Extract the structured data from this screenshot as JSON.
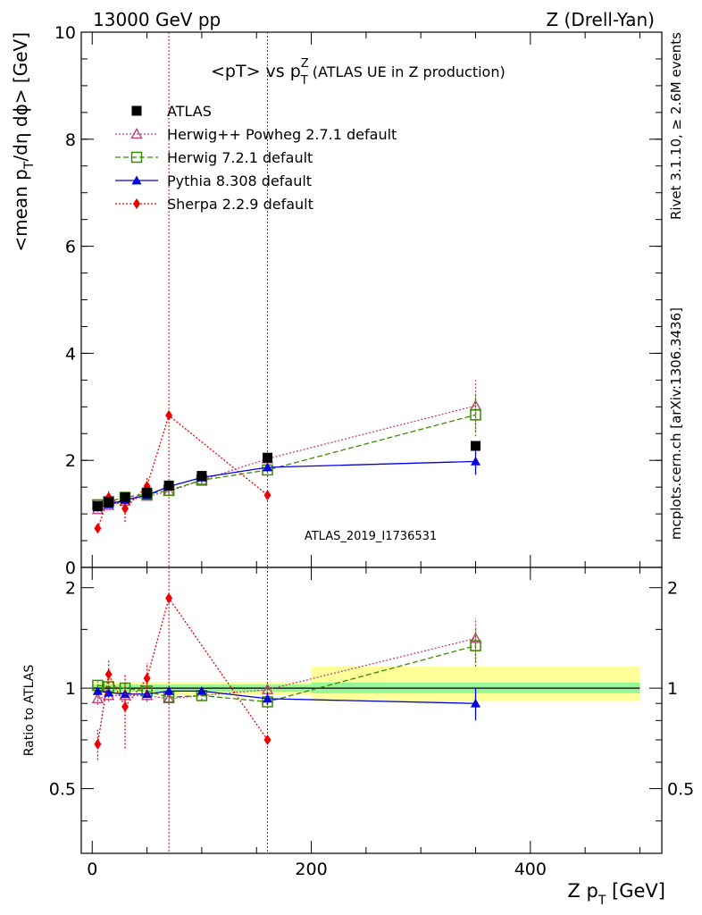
{
  "header": {
    "left": "13000 GeV pp",
    "right": "Z (Drell-Yan)"
  },
  "side_labels": {
    "rivet": "Rivet 3.1.10, ≥ 2.6M events",
    "mcplots": "mcplots.cern.ch [arXiv:1306.3436]"
  },
  "watermark": "ATLAS_2019_I1736531",
  "colors": {
    "atlas": "#000000",
    "herwigpp": "#c0407a",
    "herwig7": "#3a8a00",
    "pythia": "#0000dd",
    "sherpa": "#ee0000",
    "band_inner": "#98f598",
    "band_outer": "#ffff99",
    "vline": "#ee0000"
  },
  "chart_data": [
    {
      "type": "line",
      "title_parts": {
        "pre": "<pT> vs p",
        "sup": "Z",
        "sub": "T",
        "post": " (ATLAS UE in Z production)"
      },
      "ylabel_parts": {
        "pre": "<mean p",
        "sub": "T",
        "post": "/dη dϕ> [GeV]"
      },
      "xlim": [
        -10,
        520
      ],
      "ylim": [
        0,
        10
      ],
      "yticks": [
        0,
        2,
        4,
        6,
        8,
        10
      ],
      "grid": false,
      "legend_position": "top-left",
      "vlines_x": [
        70,
        160
      ],
      "series": [
        {
          "name": "ATLAS",
          "key": "atlas",
          "marker": "square-filled",
          "line": "none",
          "x": [
            5,
            15,
            30,
            50,
            70,
            100,
            160,
            350
          ],
          "y": [
            1.15,
            1.22,
            1.31,
            1.4,
            1.53,
            1.71,
            2.05,
            2.27
          ],
          "err": [
            0.02,
            0.02,
            0.02,
            0.02,
            0.03,
            0.03,
            0.04,
            0.05
          ]
        },
        {
          "name": "Herwig++ Powheg 2.7.1 default",
          "key": "herwigpp",
          "marker": "triangle-open",
          "line": "dotted",
          "x": [
            5,
            15,
            30,
            50,
            70,
            100,
            160,
            350
          ],
          "y": [
            1.08,
            1.16,
            1.24,
            1.33,
            1.42,
            1.63,
            2.03,
            3.02
          ],
          "err": [
            0.05,
            0.05,
            0.05,
            0.05,
            0.06,
            0.06,
            0.08,
            0.48
          ]
        },
        {
          "name": "Herwig 7.2.1 default",
          "key": "herwig7",
          "marker": "square-open",
          "line": "dashed",
          "x": [
            5,
            15,
            30,
            50,
            70,
            100,
            160,
            350
          ],
          "y": [
            1.17,
            1.23,
            1.31,
            1.37,
            1.44,
            1.63,
            1.82,
            2.85
          ],
          "err": [
            0.04,
            0.04,
            0.04,
            0.04,
            0.05,
            0.05,
            0.06,
            0.4
          ]
        },
        {
          "name": "Pythia 8.308 default",
          "key": "pythia",
          "marker": "triangle-filled",
          "line": "solid",
          "x": [
            5,
            15,
            30,
            50,
            70,
            100,
            160,
            350
          ],
          "y": [
            1.12,
            1.18,
            1.26,
            1.35,
            1.51,
            1.68,
            1.87,
            1.98
          ],
          "err": [
            0.03,
            0.03,
            0.03,
            0.04,
            0.04,
            0.05,
            0.08,
            0.25
          ]
        },
        {
          "name": "Sherpa 2.2.9 default",
          "key": "sherpa",
          "marker": "diamond-filled",
          "line": "dotted",
          "x": [
            5,
            15,
            30,
            50,
            70,
            160
          ],
          "y": [
            0.73,
            1.31,
            1.1,
            1.52,
            2.84,
            1.35
          ],
          "err": [
            0.08,
            0.12,
            0.25,
            0.15,
            0.0,
            0.0
          ]
        }
      ]
    },
    {
      "type": "line",
      "ylabel": "Ratio to ATLAS",
      "xlabel_parts": {
        "pre": "Z p",
        "sub": "T",
        "post": " [GeV]"
      },
      "xlim": [
        -10,
        520
      ],
      "ylim": [
        0.32,
        2.3
      ],
      "yticks": [
        0.5,
        1,
        2
      ],
      "ytick_labels": [
        "0.5",
        "1",
        "2"
      ],
      "xticks": [
        0,
        200,
        400
      ],
      "grid": false,
      "reference_line": 1,
      "bands": [
        {
          "x0": 0,
          "x1": 200,
          "inner": [
            0.975,
            1.025
          ],
          "outer": [
            0.955,
            1.045
          ]
        },
        {
          "x0": 200,
          "x1": 500,
          "inner": [
            0.965,
            1.04
          ],
          "outer": [
            0.915,
            1.16
          ]
        }
      ],
      "vlines_x": [
        70,
        160
      ],
      "series": [
        {
          "name": "Herwig++ Powheg 2.7.1 default",
          "key": "herwigpp",
          "marker": "triangle-open",
          "line": "dotted",
          "x": [
            5,
            15,
            30,
            50,
            70,
            160,
            350
          ],
          "y": [
            0.93,
            0.95,
            0.95,
            0.95,
            0.93,
            0.99,
            1.41
          ],
          "err": [
            0.04,
            0.04,
            0.04,
            0.04,
            0.04,
            0.05,
            0.21
          ]
        },
        {
          "name": "Herwig 7.2.1 default",
          "key": "herwig7",
          "marker": "square-open",
          "line": "dashed",
          "x": [
            5,
            15,
            30,
            50,
            70,
            100,
            160,
            350
          ],
          "y": [
            1.02,
            1.01,
            1.0,
            0.98,
            0.94,
            0.95,
            0.91,
            1.34
          ],
          "err": [
            0.03,
            0.03,
            0.03,
            0.03,
            0.04,
            0.03,
            0.04,
            0.18
          ]
        },
        {
          "name": "Pythia 8.308 default",
          "key": "pythia",
          "marker": "triangle-filled",
          "line": "solid",
          "x": [
            5,
            15,
            30,
            50,
            70,
            100,
            160,
            350
          ],
          "y": [
            0.98,
            0.97,
            0.96,
            0.96,
            0.98,
            0.98,
            0.93,
            0.9
          ],
          "err": [
            0.02,
            0.02,
            0.02,
            0.02,
            0.03,
            0.02,
            0.04,
            0.1
          ]
        },
        {
          "name": "Sherpa 2.2.9 default",
          "key": "sherpa",
          "marker": "diamond-filled",
          "line": "dotted",
          "x": [
            5,
            15,
            30,
            50,
            70,
            160
          ],
          "y": [
            0.68,
            1.1,
            0.88,
            1.07,
            1.86,
            0.7
          ],
          "err": [
            0.07,
            0.12,
            0.22,
            0.12,
            0.0,
            0.0
          ]
        }
      ]
    }
  ]
}
